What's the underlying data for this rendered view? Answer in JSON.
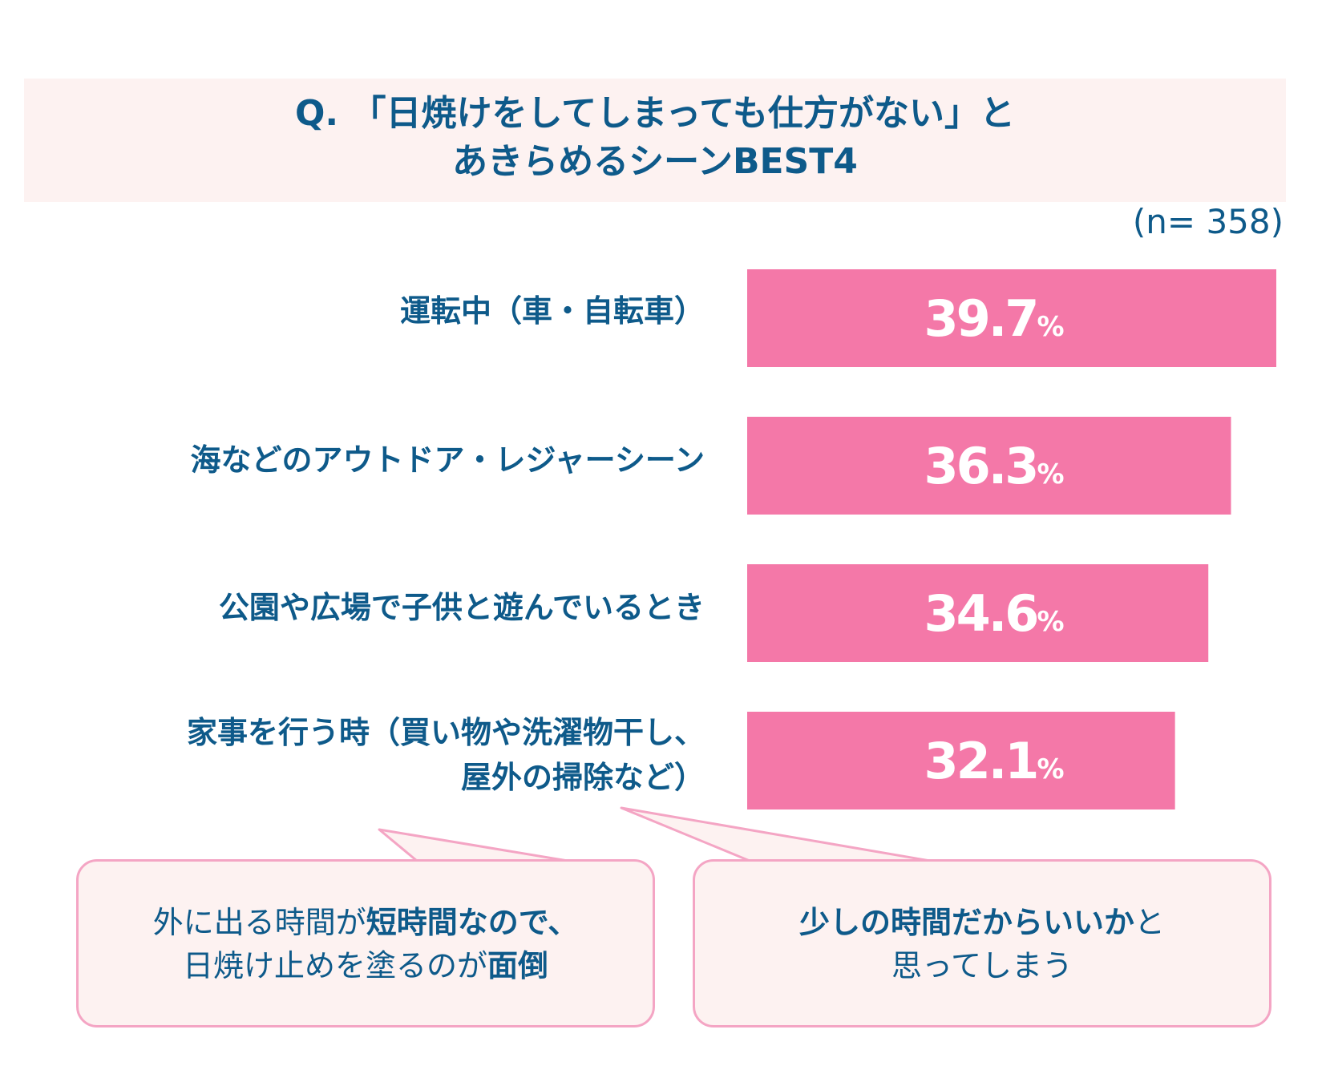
{
  "title": {
    "line1": "Q. 「日焼けをしてしまっても仕方がない」と",
    "line2": "あきらめるシーンBEST4"
  },
  "sample_size": "(n= 358)",
  "categories_display": {
    "c1": "運転中（車・自転車）",
    "c2": "海などのアウトドア・レジャーシーン",
    "c3": "公園や広場で子供と遊んでいるとき",
    "c4a": "家事を行う時（買い物や洗濯物干し、",
    "c4b": "屋外の掃除など）"
  },
  "chart_data": {
    "type": "bar",
    "orientation": "horizontal",
    "categories": [
      "運転中（車・自転車）",
      "海などのアウトドア・レジャーシーン",
      "公園や広場で子供と遊んでいるとき",
      "家事を行う時（買い物や洗濯物干し、屋外の掃除など）"
    ],
    "values": [
      39.7,
      36.3,
      34.6,
      32.1
    ],
    "value_suffix": "%",
    "bar_color": "#f478a8",
    "label_color": "#ffffff"
  },
  "comments": {
    "left": {
      "line1_plain": "外に出る時間が",
      "line1_bold": "短時間なので、",
      "line2_plain": "日焼け止めを塗るのが",
      "line2_bold": "面倒"
    },
    "right": {
      "line1_bold": "少しの時間だからいいか",
      "line1_plain": "と",
      "line2_plain": "思ってしまう"
    }
  },
  "colors": {
    "text": "#0e5a8a",
    "bar": "#f478a8",
    "panel_bg": "#fdf2f1",
    "bubble_border": "#f4a5c4"
  }
}
